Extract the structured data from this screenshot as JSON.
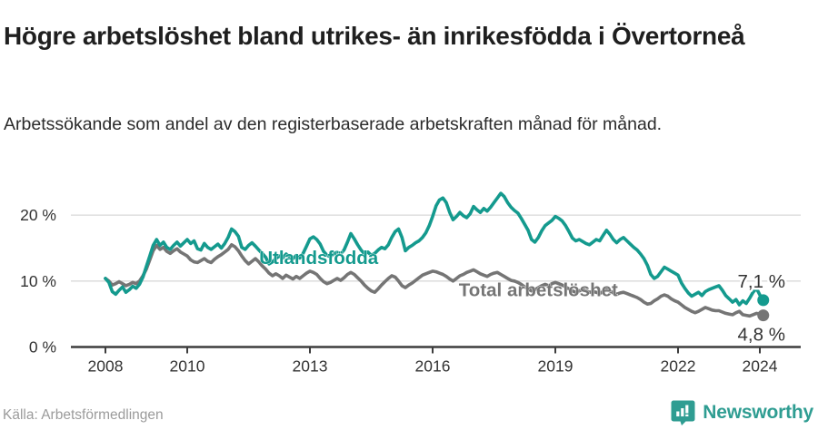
{
  "header": {
    "title": "Högre arbetslöshet bland utrikes- än inrikesfödda i Övertorneå",
    "subtitle": "Arbetssökande som andel av den registerbaserade arbetskraften månad för månad."
  },
  "footer": {
    "source": "Källa: Arbetsförmedlingen",
    "brand": "Newsworthy"
  },
  "colors": {
    "accent_teal": "#149a8e",
    "logo_teal": "#2f9d92",
    "series_gray": "#757575",
    "title_text": "#1f1f1f",
    "axis_text": "#333333",
    "axis_line": "#3d3d3d",
    "gridline": "#d9d9d9",
    "source_text": "#9b9b9b"
  },
  "chart_data": {
    "type": "line",
    "x_start_year": 2008,
    "points_per_year": 12,
    "x_ticks": [
      2008,
      2010,
      2013,
      2016,
      2019,
      2022,
      2024
    ],
    "y_ticks": [
      0,
      10,
      20
    ],
    "y_tick_labels": [
      "0 %",
      "10 %",
      "20 %"
    ],
    "ylim": [
      0,
      25
    ],
    "grid": "horizontal",
    "legend_position": "inline-labels",
    "series": [
      {
        "name": "Utlandsfödda",
        "color": "#149a8e",
        "end_label": "7,1 %",
        "end_label_position": "above",
        "values": [
          10.4,
          9.8,
          8.4,
          8.0,
          8.6,
          9.1,
          8.3,
          8.7,
          9.2,
          8.9,
          9.5,
          10.6,
          12.2,
          13.8,
          15.4,
          16.3,
          15.4,
          15.9,
          15.1,
          14.8,
          15.4,
          15.9,
          15.3,
          15.8,
          16.3,
          15.7,
          16.1,
          14.9,
          14.7,
          15.7,
          15.1,
          14.8,
          15.2,
          15.6,
          15.0,
          15.7,
          16.6,
          17.9,
          17.5,
          16.8,
          15.1,
          14.8,
          15.4,
          15.8,
          15.3,
          14.7,
          14.2,
          13.6,
          12.6,
          12.9,
          13.4,
          13.8,
          13.5,
          14.1,
          13.7,
          13.4,
          13.9,
          13.5,
          14.2,
          15.3,
          16.4,
          16.7,
          16.3,
          15.6,
          14.5,
          13.9,
          13.7,
          14.1,
          14.4,
          14.1,
          14.7,
          15.9,
          17.2,
          16.4,
          15.5,
          14.7,
          14.1,
          14.4,
          13.9,
          14.2,
          14.7,
          15.1,
          14.9,
          15.5,
          16.6,
          17.5,
          17.9,
          16.6,
          14.6,
          15.1,
          15.4,
          15.8,
          16.1,
          16.6,
          17.3,
          18.4,
          19.8,
          21.4,
          22.3,
          22.6,
          21.9,
          20.4,
          19.3,
          19.8,
          20.4,
          19.9,
          19.6,
          20.2,
          21.3,
          20.8,
          20.4,
          21.0,
          20.6,
          21.2,
          21.9,
          22.6,
          23.3,
          22.8,
          21.9,
          21.2,
          20.7,
          20.3,
          19.5,
          18.6,
          17.7,
          16.3,
          15.9,
          16.6,
          17.6,
          18.4,
          18.8,
          19.2,
          19.8,
          19.5,
          19.1,
          18.4,
          17.5,
          16.5,
          16.1,
          16.3,
          16.0,
          15.7,
          15.5,
          15.9,
          16.3,
          16.1,
          16.9,
          17.7,
          17.1,
          16.3,
          15.8,
          16.3,
          16.6,
          16.1,
          15.6,
          15.1,
          14.7,
          14.1,
          13.4,
          12.4,
          11.0,
          10.4,
          10.7,
          11.4,
          12.1,
          11.8,
          11.5,
          11.2,
          10.9,
          9.7,
          8.9,
          8.2,
          7.7,
          8.0,
          8.3,
          7.8,
          8.4,
          8.7,
          8.9,
          9.1,
          9.3,
          8.6,
          7.8,
          7.3,
          6.8,
          7.2,
          6.4,
          7.0,
          6.6,
          7.4,
          8.3,
          8.9,
          7.9,
          7.1
        ]
      },
      {
        "name": "Total arbetslöshet",
        "color": "#757575",
        "end_label": "4,8 %",
        "end_label_position": "below",
        "values": [
          10.4,
          10.0,
          9.4,
          9.6,
          9.9,
          9.6,
          9.3,
          9.5,
          9.8,
          9.6,
          10.0,
          10.8,
          11.8,
          13.2,
          14.6,
          15.4,
          14.8,
          15.1,
          14.5,
          14.2,
          14.6,
          14.9,
          14.4,
          14.1,
          13.8,
          13.2,
          12.9,
          12.8,
          13.1,
          13.4,
          13.0,
          12.8,
          13.3,
          13.7,
          14.0,
          14.4,
          14.8,
          15.5,
          15.2,
          14.6,
          13.8,
          13.1,
          12.6,
          13.0,
          13.4,
          12.9,
          12.3,
          11.8,
          11.2,
          10.8,
          11.1,
          10.8,
          10.4,
          10.9,
          10.6,
          10.3,
          10.7,
          10.4,
          10.8,
          11.2,
          11.5,
          11.3,
          11.0,
          10.4,
          9.9,
          9.6,
          9.8,
          10.1,
          10.4,
          10.1,
          10.5,
          11.0,
          11.3,
          11.0,
          10.5,
          10.0,
          9.4,
          8.9,
          8.5,
          8.3,
          8.8,
          9.4,
          9.9,
          10.4,
          10.8,
          10.6,
          10.0,
          9.3,
          9.0,
          9.4,
          9.7,
          10.1,
          10.5,
          10.9,
          11.1,
          11.3,
          11.5,
          11.4,
          11.2,
          11.0,
          10.7,
          10.3,
          10.0,
          10.4,
          10.8,
          11.0,
          11.3,
          11.5,
          11.7,
          11.4,
          11.1,
          10.9,
          10.7,
          11.0,
          11.2,
          11.3,
          11.0,
          10.7,
          10.4,
          10.1,
          10.0,
          9.8,
          9.5,
          9.1,
          8.8,
          8.5,
          8.7,
          9.0,
          9.3,
          9.5,
          9.3,
          9.6,
          9.8,
          9.6,
          9.4,
          9.1,
          8.8,
          8.5,
          8.3,
          8.5,
          8.7,
          8.5,
          8.3,
          8.4,
          8.3,
          8.1,
          8.4,
          8.7,
          8.5,
          8.2,
          8.0,
          8.2,
          8.3,
          8.1,
          7.9,
          7.7,
          7.5,
          7.2,
          6.8,
          6.5,
          6.6,
          7.0,
          7.3,
          7.7,
          7.9,
          7.7,
          7.3,
          7.0,
          6.8,
          6.4,
          6.0,
          5.7,
          5.4,
          5.2,
          5.4,
          5.7,
          6.0,
          5.8,
          5.6,
          5.5,
          5.5,
          5.3,
          5.1,
          5.0,
          4.9,
          5.2,
          5.4,
          4.9,
          4.8,
          4.7,
          4.9,
          5.1,
          5.0,
          4.8
        ]
      }
    ],
    "annotations": [
      {
        "text": "Utlandsfödda",
        "x_year": 2011.76,
        "y_pct": 12.6,
        "color": "#149a8e"
      },
      {
        "text": "Total arbetslöshet",
        "x_year": 2016.64,
        "y_pct": 7.7,
        "color": "#757575"
      }
    ]
  }
}
